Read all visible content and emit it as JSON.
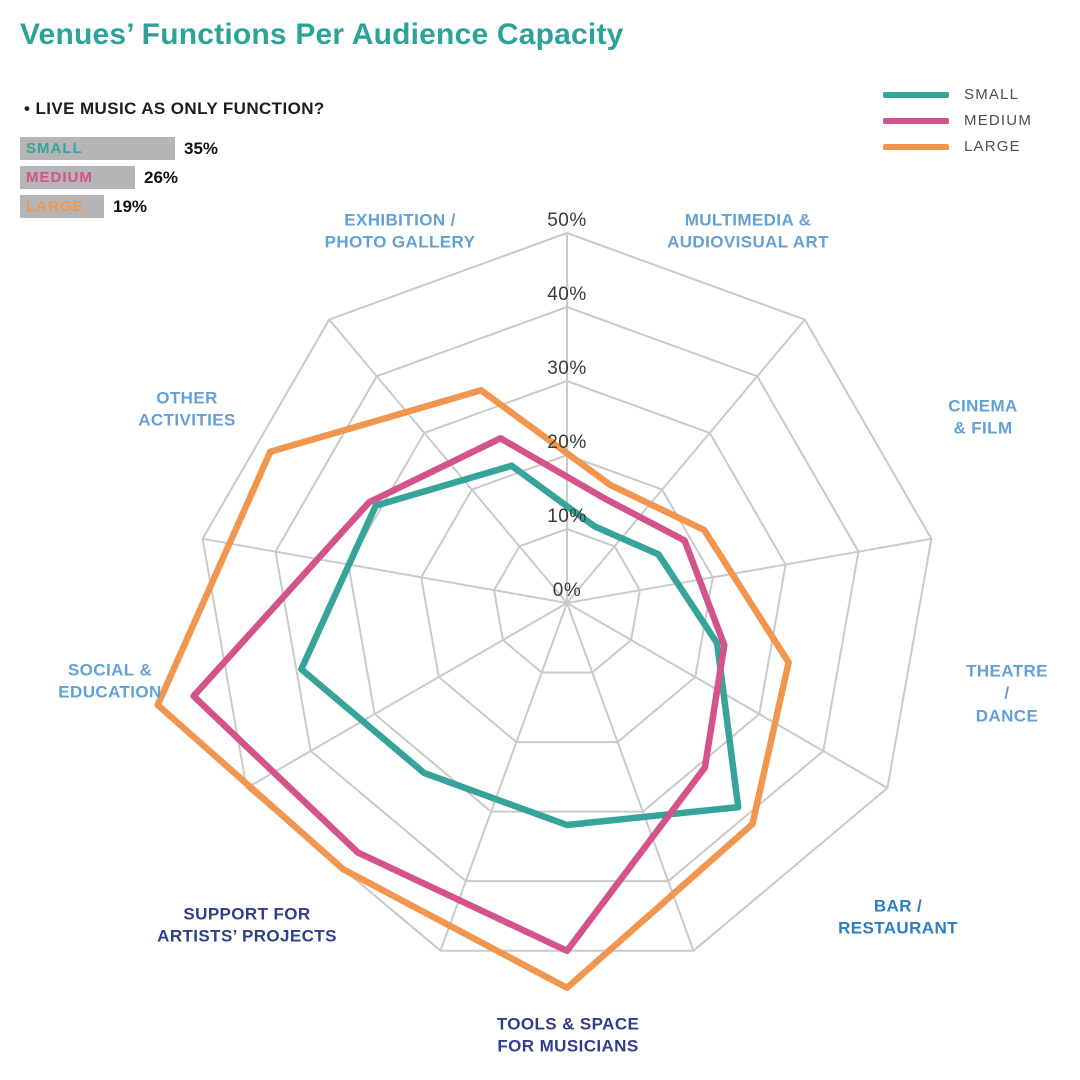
{
  "title": "Venues’ Functions Per Audience Capacity",
  "colors": {
    "title_teal": "#2ba39a",
    "teal": "#36a49b",
    "pink": "#d4538b",
    "orange": "#f0964f",
    "grid": "#cacaca",
    "bar_gray": "#b5b5b5",
    "label_light_blue": "#63a0d4",
    "label_medium_blue": "#2b7dc4",
    "label_navy": "#2f3d8e",
    "tick_text": "#3a3a3a"
  },
  "legend": {
    "items": [
      {
        "label": "SMALL",
        "color_key": "teal"
      },
      {
        "label": "MEDIUM",
        "color_key": "pink"
      },
      {
        "label": "LARGE",
        "color_key": "orange"
      }
    ]
  },
  "side_chart": {
    "heading": "• LIVE MUSIC AS ONLY FUNCTION?",
    "bars": [
      {
        "label": "SMALL",
        "value_label": "35%",
        "pct": 35,
        "color_key": "teal"
      },
      {
        "label": "MEDIUM",
        "value_label": "26%",
        "pct": 26,
        "color_key": "pink"
      },
      {
        "label": "LARGE",
        "value_label": "19%",
        "pct": 19,
        "color_key": "orange"
      }
    ]
  },
  "chart_data": {
    "type": "radar",
    "title": "Venues’ Functions Per Audience Capacity",
    "axis_min": 0,
    "axis_max": 50,
    "unit": "%",
    "grid_shape": "nonagon",
    "radial_axis": {
      "ticks": [
        "0%",
        "10%",
        "20%",
        "30%",
        "40%",
        "50%"
      ]
    },
    "categories": [
      {
        "label": "EXHIBITION /\nPHOTO GALLERY",
        "shade": "light"
      },
      {
        "label": "MULTIMEDIA &\nAUDIOVISUAL ART",
        "shade": "light"
      },
      {
        "label": "CINEMA\n& FILM",
        "shade": "light"
      },
      {
        "label": "THEATRE /\nDANCE",
        "shade": "light"
      },
      {
        "label": "BAR /\nRESTAURANT",
        "shade": "medium"
      },
      {
        "label": "TOOLS & SPACE\nFOR MUSICIANS",
        "shade": "navy"
      },
      {
        "label": "SUPPORT FOR\nARTISTS’ PROJECTS",
        "shade": "navy"
      },
      {
        "label": "SOCIAL &\nEDUCATION",
        "shade": "light"
      },
      {
        "label": "OTHER\nACTIVITIES",
        "shade": "light"
      }
    ],
    "series": [
      {
        "name": "SMALL",
        "color_key": "teal",
        "values": [
          20,
          11,
          14,
          21,
          36,
          30,
          30,
          37,
          29
        ]
      },
      {
        "name": "MEDIUM",
        "color_key": "pink",
        "values": [
          24,
          15,
          18,
          22,
          29,
          47,
          44,
          52,
          30
        ]
      },
      {
        "name": "LARGE",
        "color_key": "orange",
        "values": [
          31,
          17,
          21,
          31,
          39,
          52,
          47,
          57,
          45
        ]
      }
    ],
    "legend_position": "top-right",
    "grid": true
  }
}
